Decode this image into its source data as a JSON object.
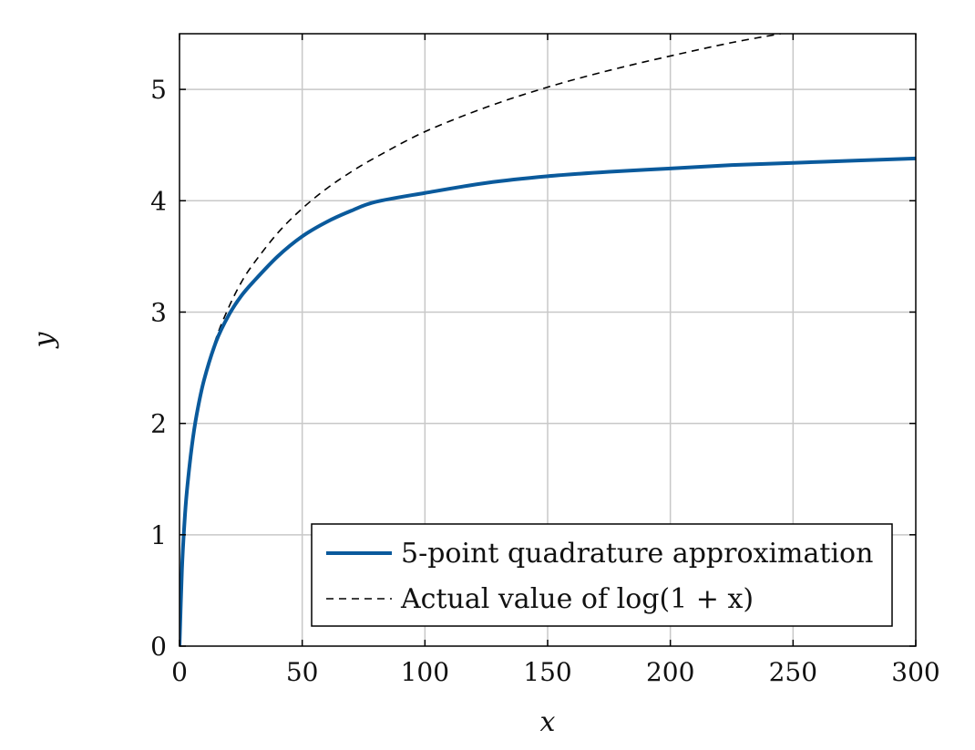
{
  "chart_data": {
    "type": "line",
    "title": "",
    "xlabel": "x",
    "ylabel": "y",
    "xlim": [
      0,
      300
    ],
    "ylim": [
      0,
      5.5
    ],
    "xticks": [
      0,
      50,
      100,
      150,
      200,
      250,
      300
    ],
    "yticks": [
      0,
      1,
      2,
      3,
      4,
      5
    ],
    "xtick_labels": [
      "0",
      "50",
      "100",
      "150",
      "200",
      "250",
      "300"
    ],
    "ytick_labels": [
      "0",
      "1",
      "2",
      "3",
      "4",
      "5"
    ],
    "grid": true,
    "legend_position": "bottom-right",
    "series": [
      {
        "name": "5-point quadrature approximation",
        "color": "#0a5a9c",
        "style": "solid",
        "x": [
          0,
          1,
          2,
          3,
          5,
          7,
          10,
          15,
          20,
          25,
          30,
          40,
          50,
          60,
          70,
          80,
          100,
          125,
          150,
          175,
          200,
          225,
          250,
          275,
          300
        ],
        "y": [
          0,
          0.69,
          1.1,
          1.39,
          1.79,
          2.08,
          2.39,
          2.74,
          2.97,
          3.14,
          3.27,
          3.5,
          3.68,
          3.81,
          3.91,
          3.99,
          4.07,
          4.16,
          4.22,
          4.26,
          4.29,
          4.32,
          4.34,
          4.36,
          4.38
        ]
      },
      {
        "name": "Actual value of log(1 + x)",
        "color": "#000000",
        "style": "dashed",
        "x": [
          0,
          1,
          2,
          3,
          5,
          7,
          10,
          15,
          20,
          25,
          30,
          40,
          50,
          60,
          70,
          80,
          100,
          125,
          150,
          175,
          200,
          225,
          245
        ],
        "y": [
          0,
          0.69,
          1.1,
          1.39,
          1.79,
          2.08,
          2.4,
          2.77,
          3.04,
          3.26,
          3.43,
          3.71,
          3.93,
          4.11,
          4.26,
          4.39,
          4.62,
          4.84,
          5.02,
          5.17,
          5.3,
          5.42,
          5.5
        ]
      }
    ]
  }
}
